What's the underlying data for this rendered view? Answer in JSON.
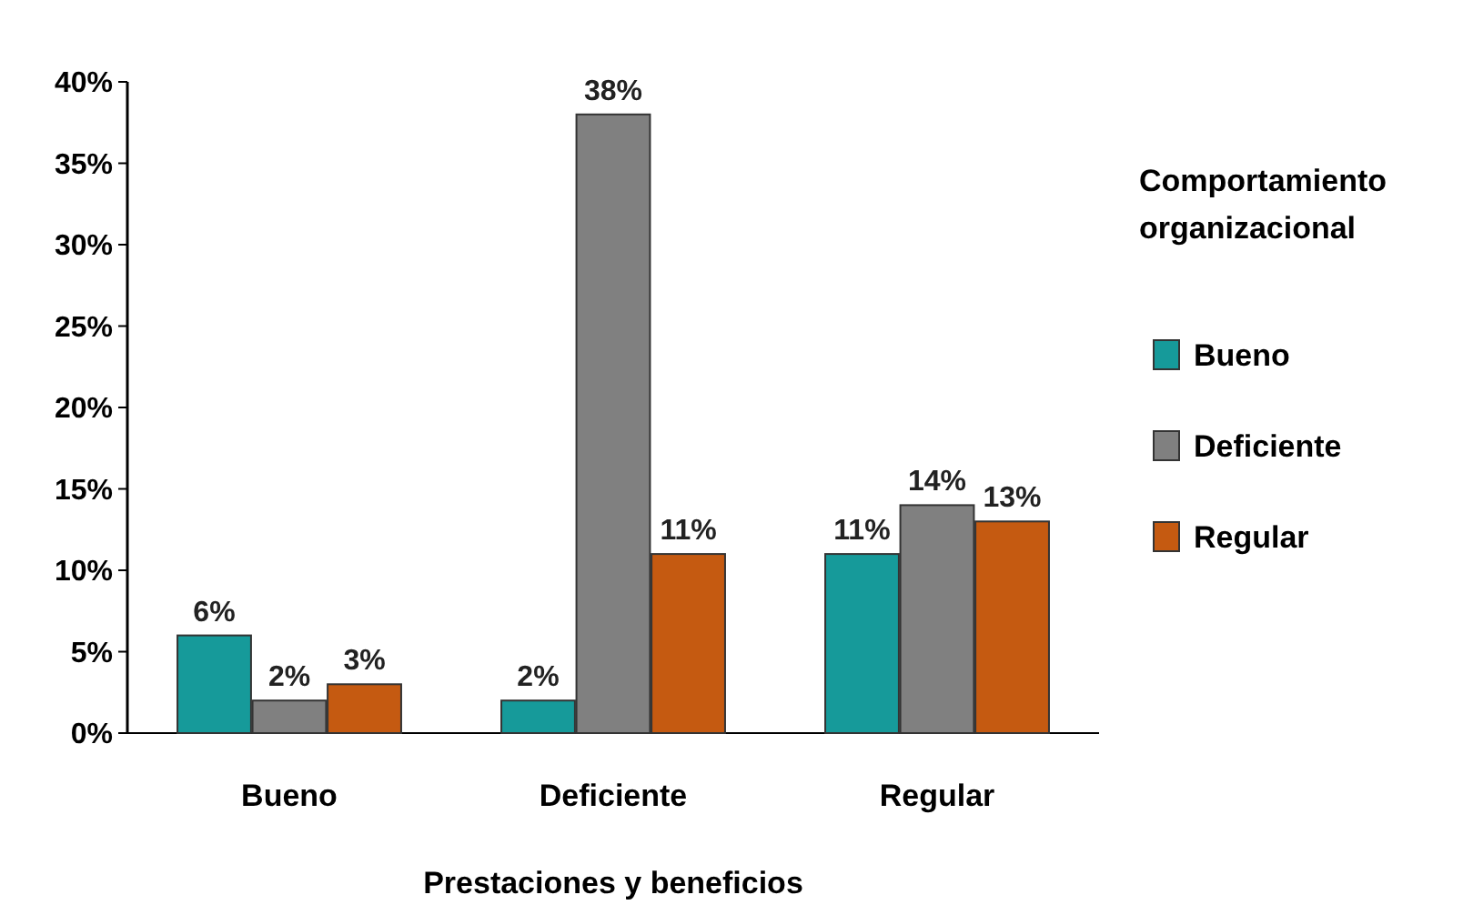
{
  "chart_data": {
    "type": "bar",
    "xlabel": "Prestaciones y beneficios",
    "legend_title": "Comportamiento organizacional",
    "legend": "right",
    "categories": [
      "Bueno",
      "Deficiente",
      "Regular"
    ],
    "ylim": [
      0,
      40
    ],
    "yticks": [
      {
        "value": 0,
        "label": "0%"
      },
      {
        "value": 5,
        "label": "5%"
      },
      {
        "value": 10,
        "label": "10%"
      },
      {
        "value": 15,
        "label": "15%"
      },
      {
        "value": 20,
        "label": "20%"
      },
      {
        "value": 25,
        "label": "25%"
      },
      {
        "value": 30,
        "label": "30%"
      },
      {
        "value": 35,
        "label": "35%"
      },
      {
        "value": 40,
        "label": "40%"
      }
    ],
    "series": [
      {
        "name": "Bueno",
        "color": "#169a9a",
        "values": [
          6,
          2,
          11
        ],
        "value_labels": [
          "6%",
          "2%",
          "11%"
        ]
      },
      {
        "name": "Deficiente",
        "color": "#808080",
        "values": [
          2,
          38,
          14
        ],
        "value_labels": [
          "2%",
          "38%",
          "14%"
        ]
      },
      {
        "name": "Regular",
        "color": "#c55a11",
        "values": [
          3,
          11,
          13
        ],
        "value_labels": [
          "3%",
          "11%",
          "13%"
        ]
      }
    ]
  }
}
